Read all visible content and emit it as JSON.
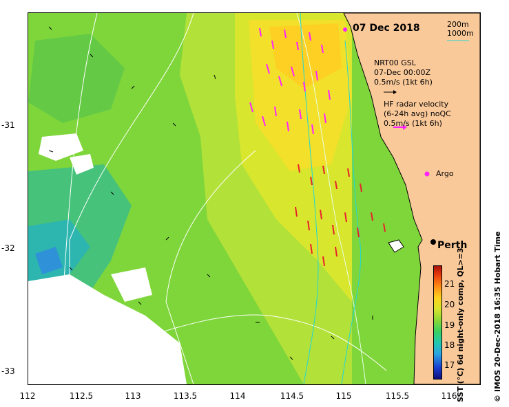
{
  "map": {
    "date_title": "07 Dec 2018",
    "scale": {
      "depth1": "200m",
      "depth2": "1000m",
      "color1": "#3a3a3a",
      "color2": "#22d6d6"
    },
    "gsl_legend": {
      "line1": "NRT00 GSL",
      "line2": "07-Dec 00:00Z",
      "line3": "0.5m/s (1kt 6h)"
    },
    "hf_legend": {
      "line1": "HF radar velocity",
      "line2": "(6-24h avg) noQC",
      "line3": "0.5m/s (1kt 6h)"
    },
    "argo_label": "Argo",
    "perth_label": "Perth",
    "colorbar": {
      "title": "SST (°C) 6d night-only comp, QL>=3",
      "ticks": [
        "21",
        "20",
        "19",
        "18",
        "17"
      ]
    },
    "footer": "© IMOS 20-Dec-2018 16:35 Hobart Time",
    "x_ticks": [
      "112",
      "112.5",
      "113",
      "113.5",
      "114",
      "114.5",
      "115",
      "115.5",
      "116"
    ],
    "y_ticks": [
      "-31",
      "-32",
      "-33"
    ],
    "colors": {
      "land": "#fac99a",
      "sea_base": "#7fd63a",
      "hf_arrow": "#ff22ff",
      "hf_arrow_red": "#e8202a",
      "argo": "#ff22ff"
    }
  }
}
